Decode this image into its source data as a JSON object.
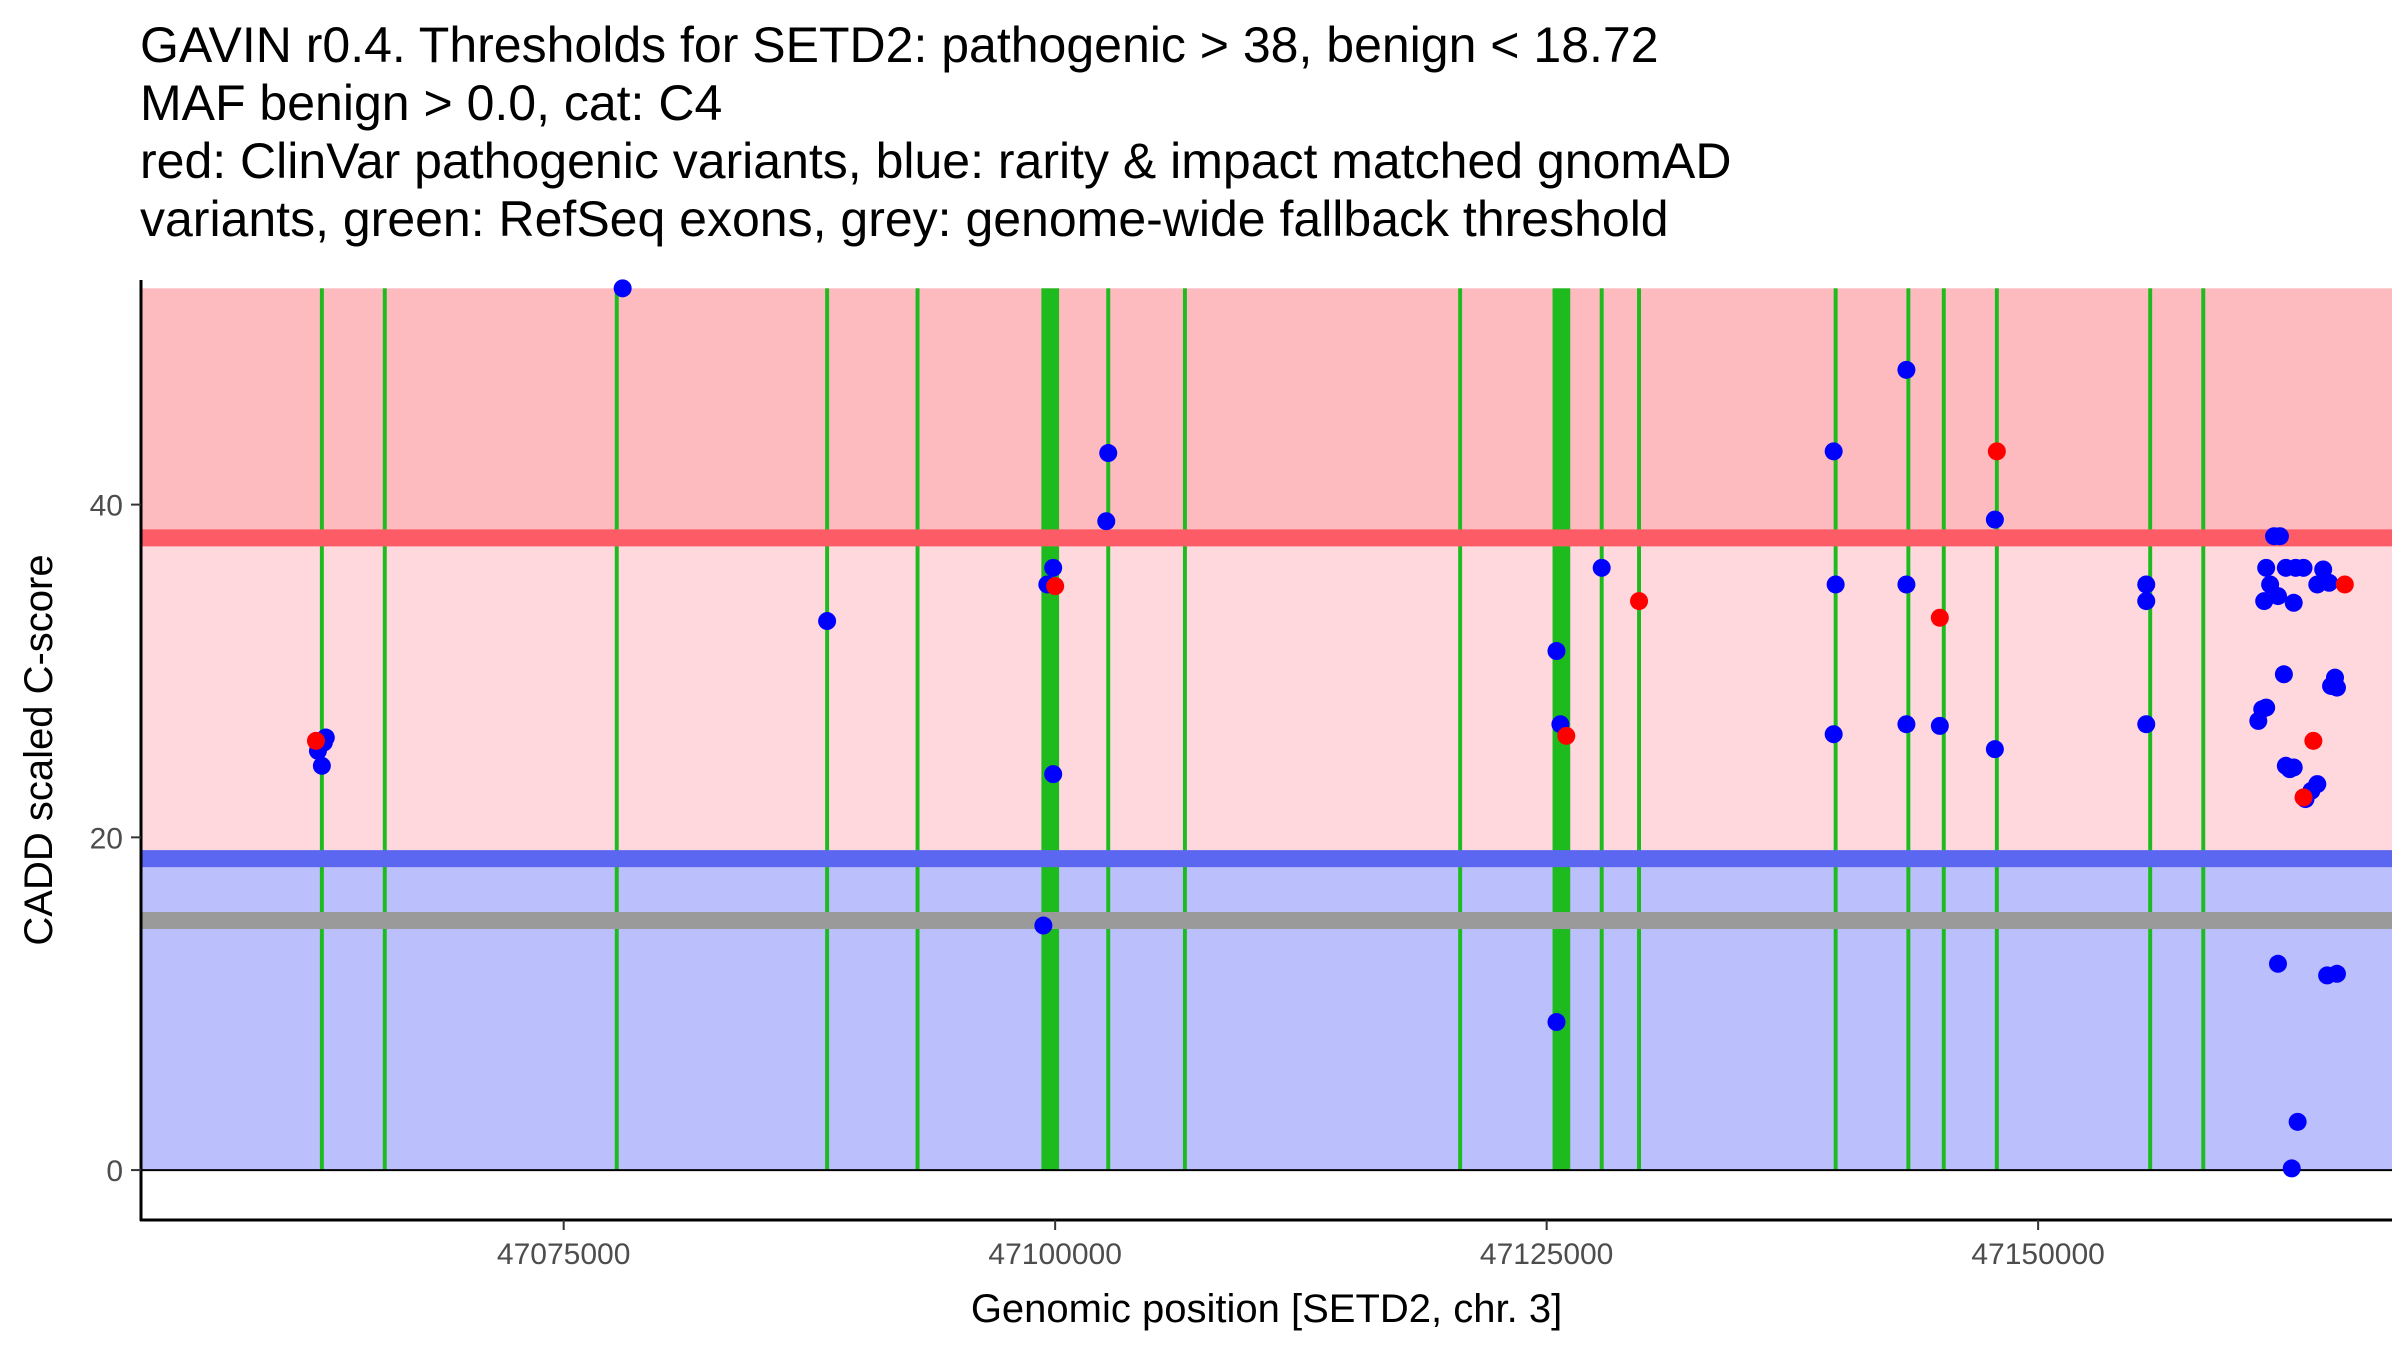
{
  "chart_data": {
    "type": "scatter",
    "title": [
      "GAVIN r0.4. Thresholds for SETD2: pathogenic > 38, benign < 18.72",
      "MAF benign > 0.0, cat: C4",
      "red: ClinVar pathogenic variants, blue: rarity & impact matched gnomAD",
      "variants, green: RefSeq exons, grey: genome-wide fallback threshold"
    ],
    "xlabel": "Genomic position [SETD2, chr. 3]",
    "ylabel": "CADD scaled C-score",
    "xlim": [
      47053500,
      47168000
    ],
    "ylim": [
      -3,
      53.5
    ],
    "x_ticks": [
      47075000,
      47100000,
      47125000,
      47150000
    ],
    "y_ticks": [
      0,
      20,
      40
    ],
    "grid": false,
    "colors": {
      "pathogenic_region": "#fdbbc0",
      "middle_region": "#fed8dc",
      "benign_region": "#bbbffb",
      "pathogenic_line": "#fd5c66",
      "benign_line": "#5b67f0",
      "fallback_line": "#9a9a9a",
      "exon": "#1dbb1d",
      "clinvar": "#ff0000",
      "gnomad": "#0000ff"
    },
    "regions": [
      {
        "name": "pathogenic",
        "y0": 38,
        "y1": 53
      },
      {
        "name": "middle",
        "y0": 18.72,
        "y1": 38
      },
      {
        "name": "benign",
        "y0": 0,
        "y1": 18.72
      }
    ],
    "thresholds": [
      {
        "name": "pathogenic",
        "value": 38
      },
      {
        "name": "benign",
        "value": 18.72
      },
      {
        "name": "fallback",
        "value": 15
      }
    ],
    "exons": [
      {
        "start": 47062600,
        "end": 47062800
      },
      {
        "start": 47065800,
        "end": 47066000
      },
      {
        "start": 47077600,
        "end": 47077800
      },
      {
        "start": 47088300,
        "end": 47088500
      },
      {
        "start": 47092900,
        "end": 47093100
      },
      {
        "start": 47099300,
        "end": 47100200
      },
      {
        "start": 47102600,
        "end": 47102800
      },
      {
        "start": 47106500,
        "end": 47106700
      },
      {
        "start": 47120500,
        "end": 47120700
      },
      {
        "start": 47125300,
        "end": 47126200
      },
      {
        "start": 47127700,
        "end": 47127900
      },
      {
        "start": 47129600,
        "end": 47129800
      },
      {
        "start": 47139600,
        "end": 47139800
      },
      {
        "start": 47143300,
        "end": 47143500
      },
      {
        "start": 47145100,
        "end": 47145300
      },
      {
        "start": 47147800,
        "end": 47148000
      },
      {
        "start": 47155600,
        "end": 47155800
      },
      {
        "start": 47158300,
        "end": 47158500
      }
    ],
    "series": [
      {
        "name": "gnomAD",
        "color": "#0000ff",
        "points": [
          [
            47062500,
            25.2
          ],
          [
            47062800,
            25.7
          ],
          [
            47062900,
            26
          ],
          [
            47062700,
            24.3
          ],
          [
            47078000,
            53
          ],
          [
            47088400,
            33
          ],
          [
            47099600,
            35.2
          ],
          [
            47099900,
            36.2
          ],
          [
            47099900,
            23.8
          ],
          [
            47099400,
            14.7
          ],
          [
            47102700,
            43.1
          ],
          [
            47102600,
            39
          ],
          [
            47125500,
            31.2
          ],
          [
            47125700,
            26.8
          ],
          [
            47125500,
            8.9
          ],
          [
            47127800,
            36.2
          ],
          [
            47139600,
            43.2
          ],
          [
            47139700,
            35.2
          ],
          [
            47139600,
            26.2
          ],
          [
            47143300,
            48.1
          ],
          [
            47143300,
            35.2
          ],
          [
            47143300,
            26.8
          ],
          [
            47145000,
            26.7
          ],
          [
            47147800,
            39.1
          ],
          [
            47147800,
            25.3
          ],
          [
            47155500,
            35.2
          ],
          [
            47155500,
            34.2
          ],
          [
            47155500,
            26.8
          ],
          [
            47162000,
            38.1
          ],
          [
            47162300,
            38.1
          ],
          [
            47161600,
            36.2
          ],
          [
            47162600,
            36.2
          ],
          [
            47161800,
            35.2
          ],
          [
            47161500,
            34.2
          ],
          [
            47162200,
            34.5
          ],
          [
            47163100,
            36.2
          ],
          [
            47163500,
            36.2
          ],
          [
            47163000,
            34.1
          ],
          [
            47162500,
            29.8
          ],
          [
            47161600,
            27.8
          ],
          [
            47161400,
            27.7
          ],
          [
            47161200,
            27
          ],
          [
            47162600,
            24.3
          ],
          [
            47163000,
            24.2
          ],
          [
            47162800,
            24.1
          ],
          [
            47164500,
            36.1
          ],
          [
            47164200,
            35.2
          ],
          [
            47164800,
            35.3
          ],
          [
            47165100,
            29.6
          ],
          [
            47164900,
            29.1
          ],
          [
            47165200,
            29.0
          ],
          [
            47164200,
            23.2
          ],
          [
            47163900,
            22.8
          ],
          [
            47163600,
            22.3
          ],
          [
            47162200,
            12.4
          ],
          [
            47164700,
            11.7
          ],
          [
            47165200,
            11.8
          ],
          [
            47163200,
            2.9
          ],
          [
            47162900,
            0.1
          ]
        ]
      },
      {
        "name": "ClinVar",
        "color": "#ff0000",
        "points": [
          [
            47062400,
            25.8
          ],
          [
            47100000,
            35.1
          ],
          [
            47126000,
            26.1
          ],
          [
            47129700,
            34.2
          ],
          [
            47145000,
            33.2
          ],
          [
            47147900,
            43.2
          ],
          [
            47164000,
            25.8
          ],
          [
            47165600,
            35.2
          ],
          [
            47163500,
            22.4
          ]
        ]
      }
    ]
  }
}
